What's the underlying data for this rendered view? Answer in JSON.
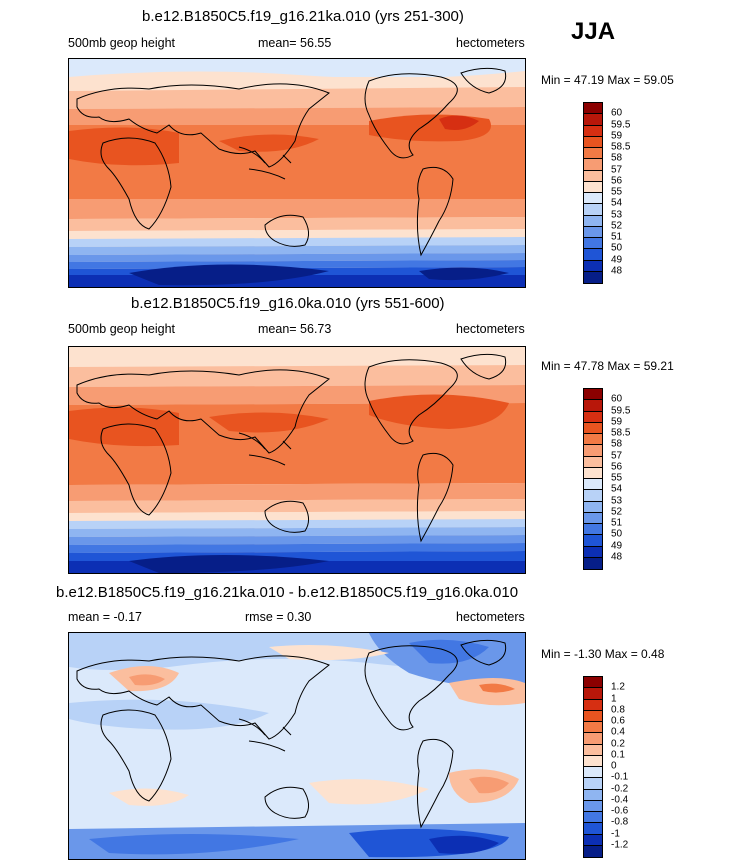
{
  "season": "JJA",
  "panels": [
    {
      "title": "b.e12.B1850C5.f19_g16.21ka.010 (yrs 251-300)",
      "left": "500mb geop height",
      "center": "mean=  56.55",
      "right": "hectometers",
      "minmax": "Min =  47.19 Max =  59.05",
      "kind": "abs"
    },
    {
      "title": "b.e12.B1850C5.f19_g16.0ka.010 (yrs 551-600)",
      "left": "500mb geop height",
      "center": "mean=  56.73",
      "right": "hectometers",
      "minmax": "Min =  47.78 Max =  59.21",
      "kind": "abs"
    },
    {
      "title": "b.e12.B1850C5.f19_g16.21ka.010 - b.e12.B1850C5.f19_g16.0ka.010",
      "left": "mean =  -0.17",
      "center": "rmse =   0.30",
      "right": "hectometers",
      "minmax": "Min =  -1.30 Max =   0.48",
      "kind": "diff"
    }
  ],
  "colorbars": {
    "abs": {
      "labels": [
        "60",
        "59.5",
        "59",
        "58.5",
        "58",
        "57",
        "56",
        "55",
        "54",
        "53",
        "52",
        "51",
        "50",
        "49",
        "48"
      ],
      "colors": [
        "#8b0000",
        "#b8170a",
        "#d62f12",
        "#e85420",
        "#f27a45",
        "#f79c73",
        "#fbbe9e",
        "#fde2cf",
        "#dbe9fb",
        "#b8d2f7",
        "#8fb5f1",
        "#6a97ea",
        "#4277e3",
        "#1f55d6",
        "#0c2fb4",
        "#061e88"
      ]
    },
    "diff": {
      "labels": [
        "1.2",
        "1",
        "0.8",
        "0.6",
        "0.4",
        "0.2",
        "0.1",
        "0",
        "-0.1",
        "-0.2",
        "-0.4",
        "-0.6",
        "-0.8",
        "-1",
        "-1.2"
      ],
      "colors": [
        "#8b0000",
        "#b8170a",
        "#d62f12",
        "#e85420",
        "#f27a45",
        "#f79c73",
        "#fbbe9e",
        "#fde2cf",
        "#dbe9fb",
        "#b8d2f7",
        "#8fb5f1",
        "#6a97ea",
        "#4277e3",
        "#1f55d6",
        "#0c2fb4",
        "#061e88"
      ]
    }
  }
}
